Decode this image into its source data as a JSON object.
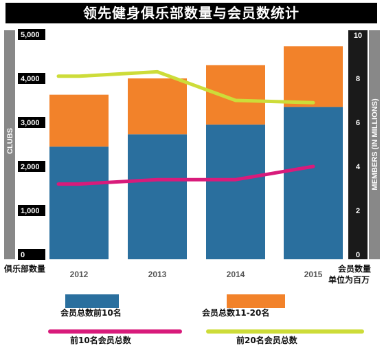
{
  "title": "领先健身俱乐部数量与会员数统计",
  "left_axis_label_vertical": "CLUBS",
  "right_axis_label_vertical": "MEMBERS (IN MILLIONS)",
  "left_axis_caption": "俱乐部数量",
  "right_axis_caption_line1": "会员数量",
  "right_axis_caption_line2": "单位为百万",
  "legend": {
    "bar_top10": "会员总数前10名",
    "bar_11_20": "会员总数11-20名",
    "line_top10": "前10名会员总数",
    "line_top20": "前20名会员总数"
  },
  "colors": {
    "background": "#ffffff",
    "title_bar": "#000000",
    "axis_band": "#888888",
    "bar_top10": "#2a6f9e",
    "bar_11_20": "#f2822a",
    "line_top10": "#d81b7b",
    "line_top20": "#cddc39"
  },
  "chart_data": {
    "type": "bar",
    "stacked": true,
    "categories": [
      "2012",
      "2013",
      "2014",
      "2015"
    ],
    "left_axis": {
      "label": "CLUBS",
      "ylim": [
        0,
        5000
      ],
      "ticks": [
        "0",
        "1,000",
        "2,000",
        "3,000",
        "4,000",
        "5,000"
      ]
    },
    "right_axis": {
      "label": "MEMBERS (IN MILLIONS)",
      "ylim": [
        0,
        10
      ],
      "ticks": [
        "0",
        "2",
        "4",
        "6",
        "8",
        "10"
      ]
    },
    "series": [
      {
        "name": "会员总数前10名",
        "type": "bar",
        "axis": "left",
        "values": [
          2450,
          2730,
          2950,
          3350
        ]
      },
      {
        "name": "会员总数11-20名",
        "type": "bar",
        "axis": "left",
        "values": [
          1180,
          1270,
          1350,
          1380
        ]
      },
      {
        "name": "前10名会员总数",
        "type": "line",
        "axis": "right",
        "values": [
          3.2,
          3.4,
          3.4,
          4.0
        ]
      },
      {
        "name": "前20名会员总数",
        "type": "line",
        "axis": "right",
        "values": [
          8.1,
          8.3,
          7.0,
          6.9
        ]
      }
    ],
    "grid": false
  }
}
